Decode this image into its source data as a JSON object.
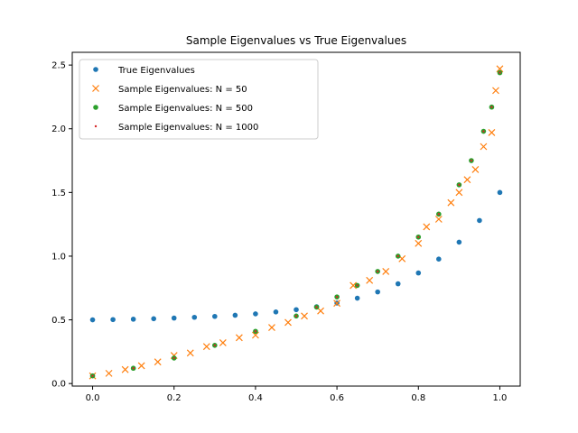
{
  "chart_data": {
    "type": "scatter",
    "title": "Sample Eigenvalues vs True Eigenvalues",
    "xlabel": "",
    "ylabel": "",
    "xlim": [
      -0.05,
      1.05
    ],
    "ylim": [
      -0.02,
      2.6
    ],
    "xticks": [
      0.0,
      0.2,
      0.4,
      0.6,
      0.8,
      1.0
    ],
    "xtick_labels": [
      "0.0",
      "0.2",
      "0.4",
      "0.6",
      "0.8",
      "1.0"
    ],
    "yticks": [
      0.0,
      0.5,
      1.0,
      1.5,
      2.0,
      2.5
    ],
    "ytick_labels": [
      "0.0",
      "0.5",
      "1.0",
      "1.5",
      "2.0",
      "2.5"
    ],
    "grid": false,
    "legend_position": "upper-left",
    "series": [
      {
        "name": "True Eigenvalues",
        "marker": "dot",
        "color": "#1f77b4",
        "x": [
          0.0,
          0.05,
          0.1,
          0.15,
          0.2,
          0.25,
          0.3,
          0.35,
          0.4,
          0.45,
          0.5,
          0.55,
          0.6,
          0.65,
          0.7,
          0.75,
          0.8,
          0.85,
          0.9,
          0.95,
          1.0
        ],
        "y": [
          0.5,
          0.502,
          0.505,
          0.509,
          0.514,
          0.52,
          0.527,
          0.536,
          0.547,
          0.562,
          0.58,
          0.603,
          0.632,
          0.67,
          0.719,
          0.783,
          0.868,
          0.977,
          1.11,
          1.28,
          1.5
        ]
      },
      {
        "name": "Sample Eigenvalues: N = 50",
        "marker": "x",
        "color": "#ff7f0e",
        "x": [
          0.0,
          0.04,
          0.08,
          0.12,
          0.16,
          0.2,
          0.24,
          0.28,
          0.32,
          0.36,
          0.4,
          0.44,
          0.48,
          0.52,
          0.56,
          0.6,
          0.64,
          0.68,
          0.72,
          0.76,
          0.8,
          0.82,
          0.85,
          0.88,
          0.9,
          0.92,
          0.94,
          0.96,
          0.98,
          0.99,
          1.0
        ],
        "y": [
          0.06,
          0.08,
          0.11,
          0.14,
          0.17,
          0.22,
          0.24,
          0.29,
          0.32,
          0.36,
          0.38,
          0.44,
          0.48,
          0.53,
          0.57,
          0.63,
          0.77,
          0.81,
          0.88,
          0.98,
          1.1,
          1.23,
          1.29,
          1.42,
          1.5,
          1.6,
          1.68,
          1.86,
          1.97,
          2.3,
          2.47
        ]
      },
      {
        "name": "Sample Eigenvalues: N = 500",
        "marker": "dot",
        "color": "#2ca02c",
        "x": [
          0.0,
          0.1,
          0.2,
          0.3,
          0.4,
          0.5,
          0.55,
          0.6,
          0.65,
          0.7,
          0.75,
          0.8,
          0.85,
          0.9,
          0.93,
          0.96,
          0.98,
          1.0
        ],
        "y": [
          0.06,
          0.12,
          0.2,
          0.3,
          0.41,
          0.53,
          0.6,
          0.68,
          0.77,
          0.88,
          1.0,
          1.15,
          1.33,
          1.56,
          1.75,
          1.98,
          2.17,
          2.44
        ]
      },
      {
        "name": "Sample Eigenvalues: N = 1000",
        "marker": "point",
        "color": "#d62728",
        "x": [
          0.0,
          0.1,
          0.2,
          0.3,
          0.4,
          0.5,
          0.55,
          0.6,
          0.65,
          0.7,
          0.75,
          0.8,
          0.85,
          0.9,
          0.93,
          0.96,
          0.98,
          1.0
        ],
        "y": [
          0.06,
          0.12,
          0.2,
          0.3,
          0.41,
          0.53,
          0.6,
          0.68,
          0.77,
          0.88,
          1.0,
          1.15,
          1.33,
          1.56,
          1.75,
          1.98,
          2.17,
          2.44
        ]
      }
    ]
  }
}
